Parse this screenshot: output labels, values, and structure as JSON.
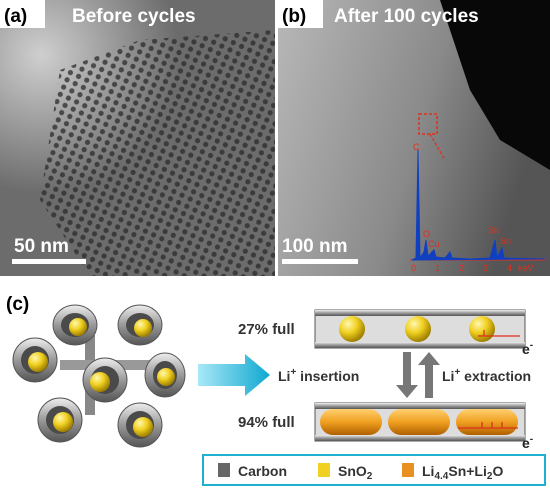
{
  "panel_a": {
    "label": "(a)",
    "title": "Before cycles",
    "scale_bar": "50 nm"
  },
  "panel_b": {
    "label": "(b)",
    "title": "After 100 cycles",
    "scale_bar": "100 nm",
    "eds": {
      "peaks": [
        "C",
        "O",
        "Cu",
        "Sn",
        "Sn"
      ],
      "axis": [
        "0",
        "1",
        "2",
        "3",
        "4"
      ],
      "unit": "keV"
    }
  },
  "panel_c": {
    "label": "(c)",
    "top_state": "27% full",
    "bottom_state": "94% full",
    "electron_top": [
      "e",
      "-"
    ],
    "electron_bottom": [
      "e",
      "-"
    ],
    "insertion": [
      "Li",
      "+",
      " insertion"
    ],
    "extraction": [
      "Li",
      "+",
      " extraction"
    ],
    "legend": [
      {
        "parts": [
          "Carbon"
        ]
      },
      {
        "parts": [
          "SnO",
          "2"
        ]
      },
      {
        "parts": [
          "Li",
          "4.4",
          "Sn+Li",
          "2",
          "O"
        ]
      }
    ]
  }
}
